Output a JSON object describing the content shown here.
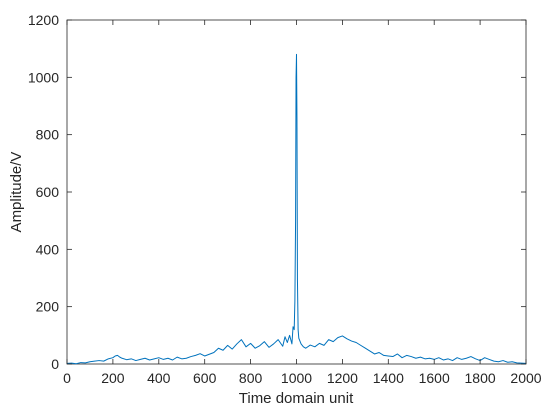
{
  "chart_data": {
    "type": "line",
    "title": "",
    "xlabel": "Time domain unit",
    "ylabel": "Amplitude/V",
    "xlim": [
      0,
      2000
    ],
    "ylim": [
      0,
      1200
    ],
    "xticks": [
      0,
      200,
      400,
      600,
      800,
      1000,
      1200,
      1400,
      1600,
      1800,
      2000
    ],
    "yticks": [
      0,
      200,
      400,
      600,
      800,
      1000,
      1200
    ],
    "grid": false,
    "line_color": "#0072BD",
    "axis_color": "#262626",
    "series": [
      {
        "x": [
          0,
          20,
          40,
          60,
          80,
          100,
          120,
          140,
          160,
          180,
          200,
          210,
          220,
          230,
          240,
          260,
          280,
          300,
          320,
          340,
          360,
          380,
          400,
          420,
          440,
          460,
          480,
          500,
          520,
          540,
          560,
          580,
          600,
          620,
          640,
          660,
          680,
          700,
          720,
          740,
          760,
          780,
          800,
          820,
          840,
          860,
          880,
          900,
          920,
          940,
          950,
          960,
          970,
          980,
          985,
          990,
          993,
          996,
          998,
          1000,
          1002,
          1004,
          1007,
          1010,
          1015,
          1020,
          1030,
          1040,
          1060,
          1080,
          1100,
          1120,
          1140,
          1160,
          1180,
          1200,
          1220,
          1240,
          1260,
          1280,
          1300,
          1320,
          1340,
          1360,
          1380,
          1400,
          1420,
          1440,
          1460,
          1480,
          1500,
          1520,
          1540,
          1560,
          1580,
          1600,
          1620,
          1640,
          1660,
          1680,
          1700,
          1720,
          1740,
          1760,
          1780,
          1800,
          1820,
          1840,
          1860,
          1880,
          1900,
          1920,
          1940,
          1960,
          1980,
          2000
        ],
        "y": [
          2,
          3,
          1,
          5,
          4,
          8,
          10,
          12,
          10,
          18,
          22,
          28,
          30,
          24,
          20,
          15,
          18,
          12,
          16,
          20,
          14,
          18,
          22,
          16,
          20,
          14,
          24,
          18,
          20,
          26,
          30,
          36,
          28,
          34,
          40,
          55,
          48,
          65,
          52,
          70,
          85,
          60,
          72,
          55,
          64,
          78,
          58,
          70,
          85,
          62,
          95,
          75,
          100,
          70,
          130,
          120,
          220,
          500,
          1000,
          1080,
          860,
          300,
          120,
          90,
          80,
          70,
          60,
          55,
          66,
          60,
          72,
          65,
          85,
          78,
          92,
          98,
          88,
          80,
          75,
          65,
          55,
          45,
          35,
          40,
          30,
          28,
          26,
          35,
          22,
          30,
          26,
          20,
          24,
          18,
          20,
          16,
          22,
          14,
          18,
          12,
          22,
          16,
          20,
          26,
          18,
          12,
          22,
          16,
          10,
          8,
          12,
          6,
          8,
          4,
          3,
          2
        ]
      }
    ]
  }
}
